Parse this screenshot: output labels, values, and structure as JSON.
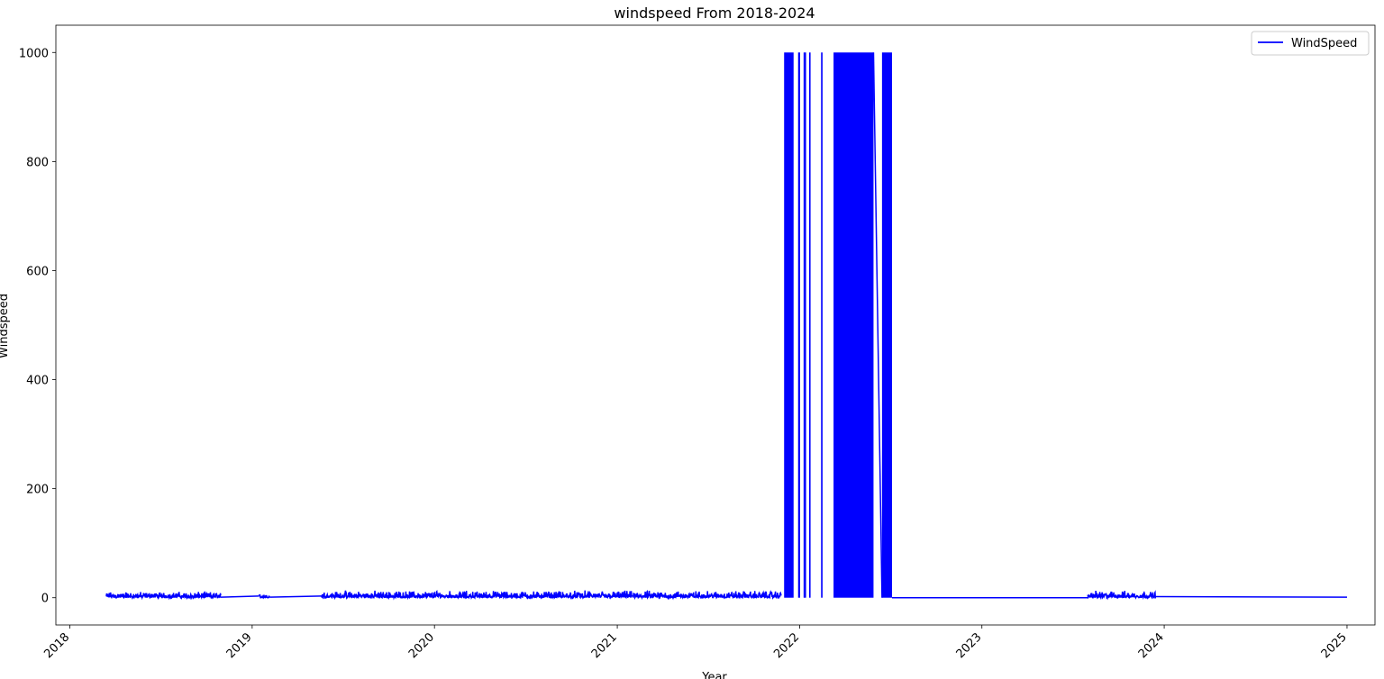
{
  "chart_data": {
    "type": "line",
    "title": "windspeed From 2018-2024",
    "xlabel": "Year",
    "ylabel": "Windspeed",
    "x_tick_labels": [
      "2018",
      "2019",
      "2020",
      "2021",
      "2022",
      "2023",
      "2024",
      "2025"
    ],
    "y_tick_labels": [
      "0",
      "200",
      "400",
      "600",
      "800",
      "1000"
    ],
    "y_ticks": [
      0,
      200,
      400,
      600,
      800,
      1000
    ],
    "xlim": [
      "2017-12-04",
      "2025-02-26"
    ],
    "ylim": [
      -50,
      1050
    ],
    "grid": false,
    "legend_position": "top-right",
    "colors": {
      "series": "#0000ff",
      "axes": "#000000",
      "background": "#ffffff"
    },
    "series": [
      {
        "name": "WindSpeed",
        "color": "#0000ff",
        "noise_segments": [
          {
            "start": "2018-03-15",
            "end": "2018-10-30",
            "min": 0,
            "max": 12
          },
          {
            "start": "2019-01-15",
            "end": "2019-02-05",
            "min": 0,
            "max": 8
          },
          {
            "start": "2019-05-20",
            "end": "2021-11-25",
            "min": 0,
            "max": 14
          },
          {
            "start": "2023-08-01",
            "end": "2023-12-15",
            "min": 0,
            "max": 14
          }
        ],
        "high_blocks": [
          {
            "start": "2021-12-01",
            "end": "2021-12-20",
            "value": 1000
          },
          {
            "start": "2021-12-29",
            "end": "2022-01-02",
            "value": 1000
          },
          {
            "start": "2022-01-09",
            "end": "2022-01-14",
            "value": 1000
          },
          {
            "start": "2022-01-20",
            "end": "2022-01-23",
            "value": 1000
          },
          {
            "start": "2022-02-13",
            "end": "2022-02-16",
            "value": 1000
          },
          {
            "start": "2022-03-10",
            "end": "2022-05-29",
            "value": 1000
          },
          {
            "start": "2022-06-15",
            "end": "2022-07-05",
            "value": 1000
          }
        ],
        "connector_lines": [
          {
            "x": [
              "2018-10-30",
              "2019-01-15"
            ],
            "y": [
              1,
              3
            ]
          },
          {
            "x": [
              "2019-02-05",
              "2019-05-20"
            ],
            "y": [
              1,
              3
            ]
          },
          {
            "x": [
              "2022-05-29",
              "2022-06-15"
            ],
            "y": [
              1000,
              0
            ]
          },
          {
            "x": [
              "2022-07-05",
              "2023-08-01"
            ],
            "y": [
              0,
              0
            ]
          },
          {
            "x": [
              "2023-12-15",
              "2025-01-01"
            ],
            "y": [
              2,
              1
            ]
          }
        ]
      }
    ]
  }
}
